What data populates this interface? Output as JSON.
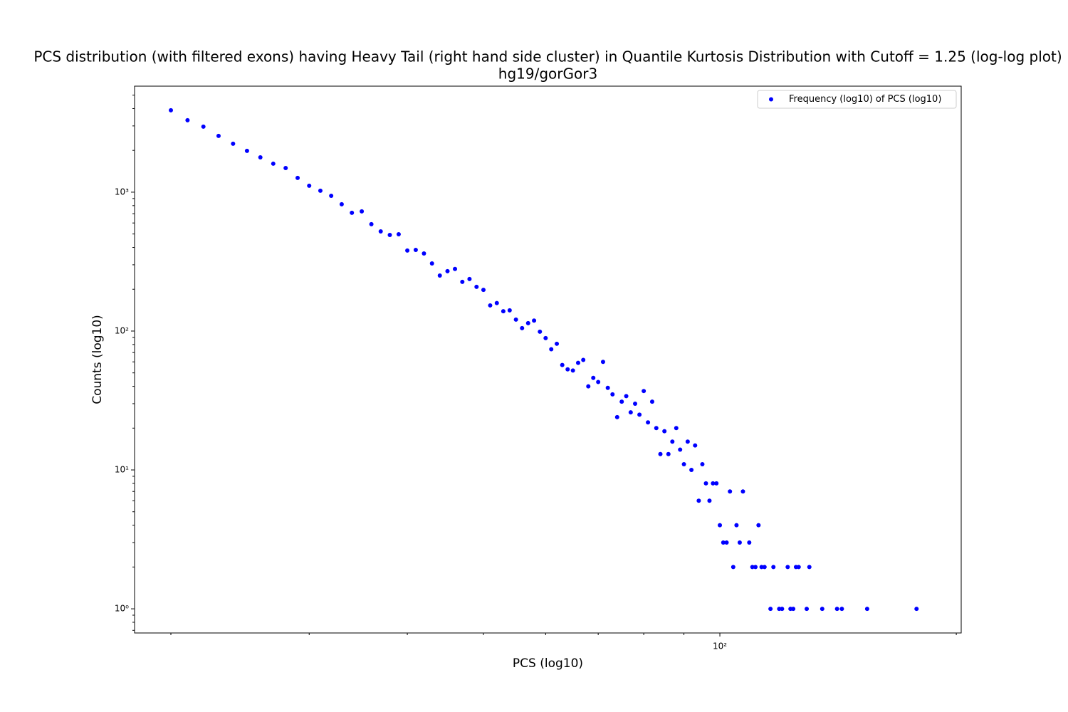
{
  "chart_data": {
    "type": "scatter",
    "title": "PCS distribution (with filtered exons) having Heavy Tail (right hand side cluster) in Quantile Kurtosis Distribution with Cutoff = 1.25 (log-log plot)",
    "subtitle": "hg19/gorGor3",
    "x_label": "PCS (log10)",
    "y_label": "Counts (log10)",
    "xscale": "log",
    "yscale": "log",
    "xlim": [
      17.98,
      202.9
    ],
    "ylim": [
      0.67,
      5800
    ],
    "xticks": [
      {
        "value": 100,
        "label": "10²"
      }
    ],
    "yticks": [
      {
        "value": 1,
        "label": "10⁰"
      },
      {
        "value": 10,
        "label": "10¹"
      },
      {
        "value": 100,
        "label": "10²"
      },
      {
        "value": 1000,
        "label": "10³"
      }
    ],
    "xminorticks": [
      20,
      30,
      40,
      50,
      60,
      70,
      80,
      90,
      200
    ],
    "yminorticks": [
      0.7,
      0.8,
      0.9,
      2,
      3,
      4,
      5,
      6,
      7,
      8,
      9,
      20,
      30,
      40,
      50,
      60,
      70,
      80,
      90,
      200,
      300,
      400,
      500,
      600,
      700,
      800,
      900,
      2000,
      3000,
      4000,
      5000
    ],
    "legend_loc": "upper right",
    "series": [
      {
        "name": "Frequency (log10) of PCS (log10)",
        "color": "#0000ff",
        "x": [
          20,
          21,
          22,
          23,
          24,
          25,
          26,
          27,
          28,
          29,
          30,
          31,
          32,
          33,
          34,
          35,
          36,
          37,
          38,
          39,
          40,
          41,
          42,
          43,
          44,
          45,
          46,
          47,
          48,
          49,
          50,
          51,
          52,
          53,
          54,
          55,
          56,
          57,
          58,
          59,
          60,
          61,
          62,
          63,
          64,
          65,
          66,
          67,
          68,
          69,
          70,
          71,
          72,
          73,
          74,
          75,
          76,
          77,
          78,
          79,
          80,
          81,
          82,
          83,
          84,
          85,
          86,
          87,
          88,
          89,
          90,
          91,
          92,
          93,
          94,
          95,
          96,
          97,
          98,
          99,
          100,
          101,
          102,
          103,
          104,
          105,
          106,
          107,
          109,
          110,
          111,
          112,
          113,
          114,
          116,
          117,
          119,
          120,
          122,
          123,
          124,
          125,
          126,
          129,
          130,
          135,
          141,
          143,
          154,
          178
        ],
        "values": [
          3890,
          3297,
          2964,
          2541,
          2233,
          1983,
          1782,
          1603,
          1493,
          1267,
          1112,
          1024,
          942,
          818,
          710,
          727,
          588,
          522,
          492,
          498,
          380,
          384,
          362,
          307,
          251,
          270,
          280,
          226,
          237,
          208,
          198,
          153,
          159,
          139,
          141,
          121,
          105,
          114,
          119,
          99,
          89,
          74,
          81,
          57,
          53,
          52,
          59,
          62,
          40,
          46,
          43,
          60,
          39,
          35,
          24,
          31,
          34,
          26,
          30,
          25,
          37,
          22,
          31,
          20,
          13,
          19,
          13,
          16,
          20,
          14,
          11,
          16,
          10,
          15,
          6,
          11,
          8,
          6,
          8,
          8,
          4,
          3,
          3,
          7,
          2,
          4,
          3,
          7,
          3,
          2,
          2,
          4,
          2,
          2,
          1,
          2,
          1,
          1,
          2,
          1,
          1,
          2,
          2,
          1,
          2,
          1,
          1,
          1,
          1,
          1
        ]
      }
    ]
  }
}
